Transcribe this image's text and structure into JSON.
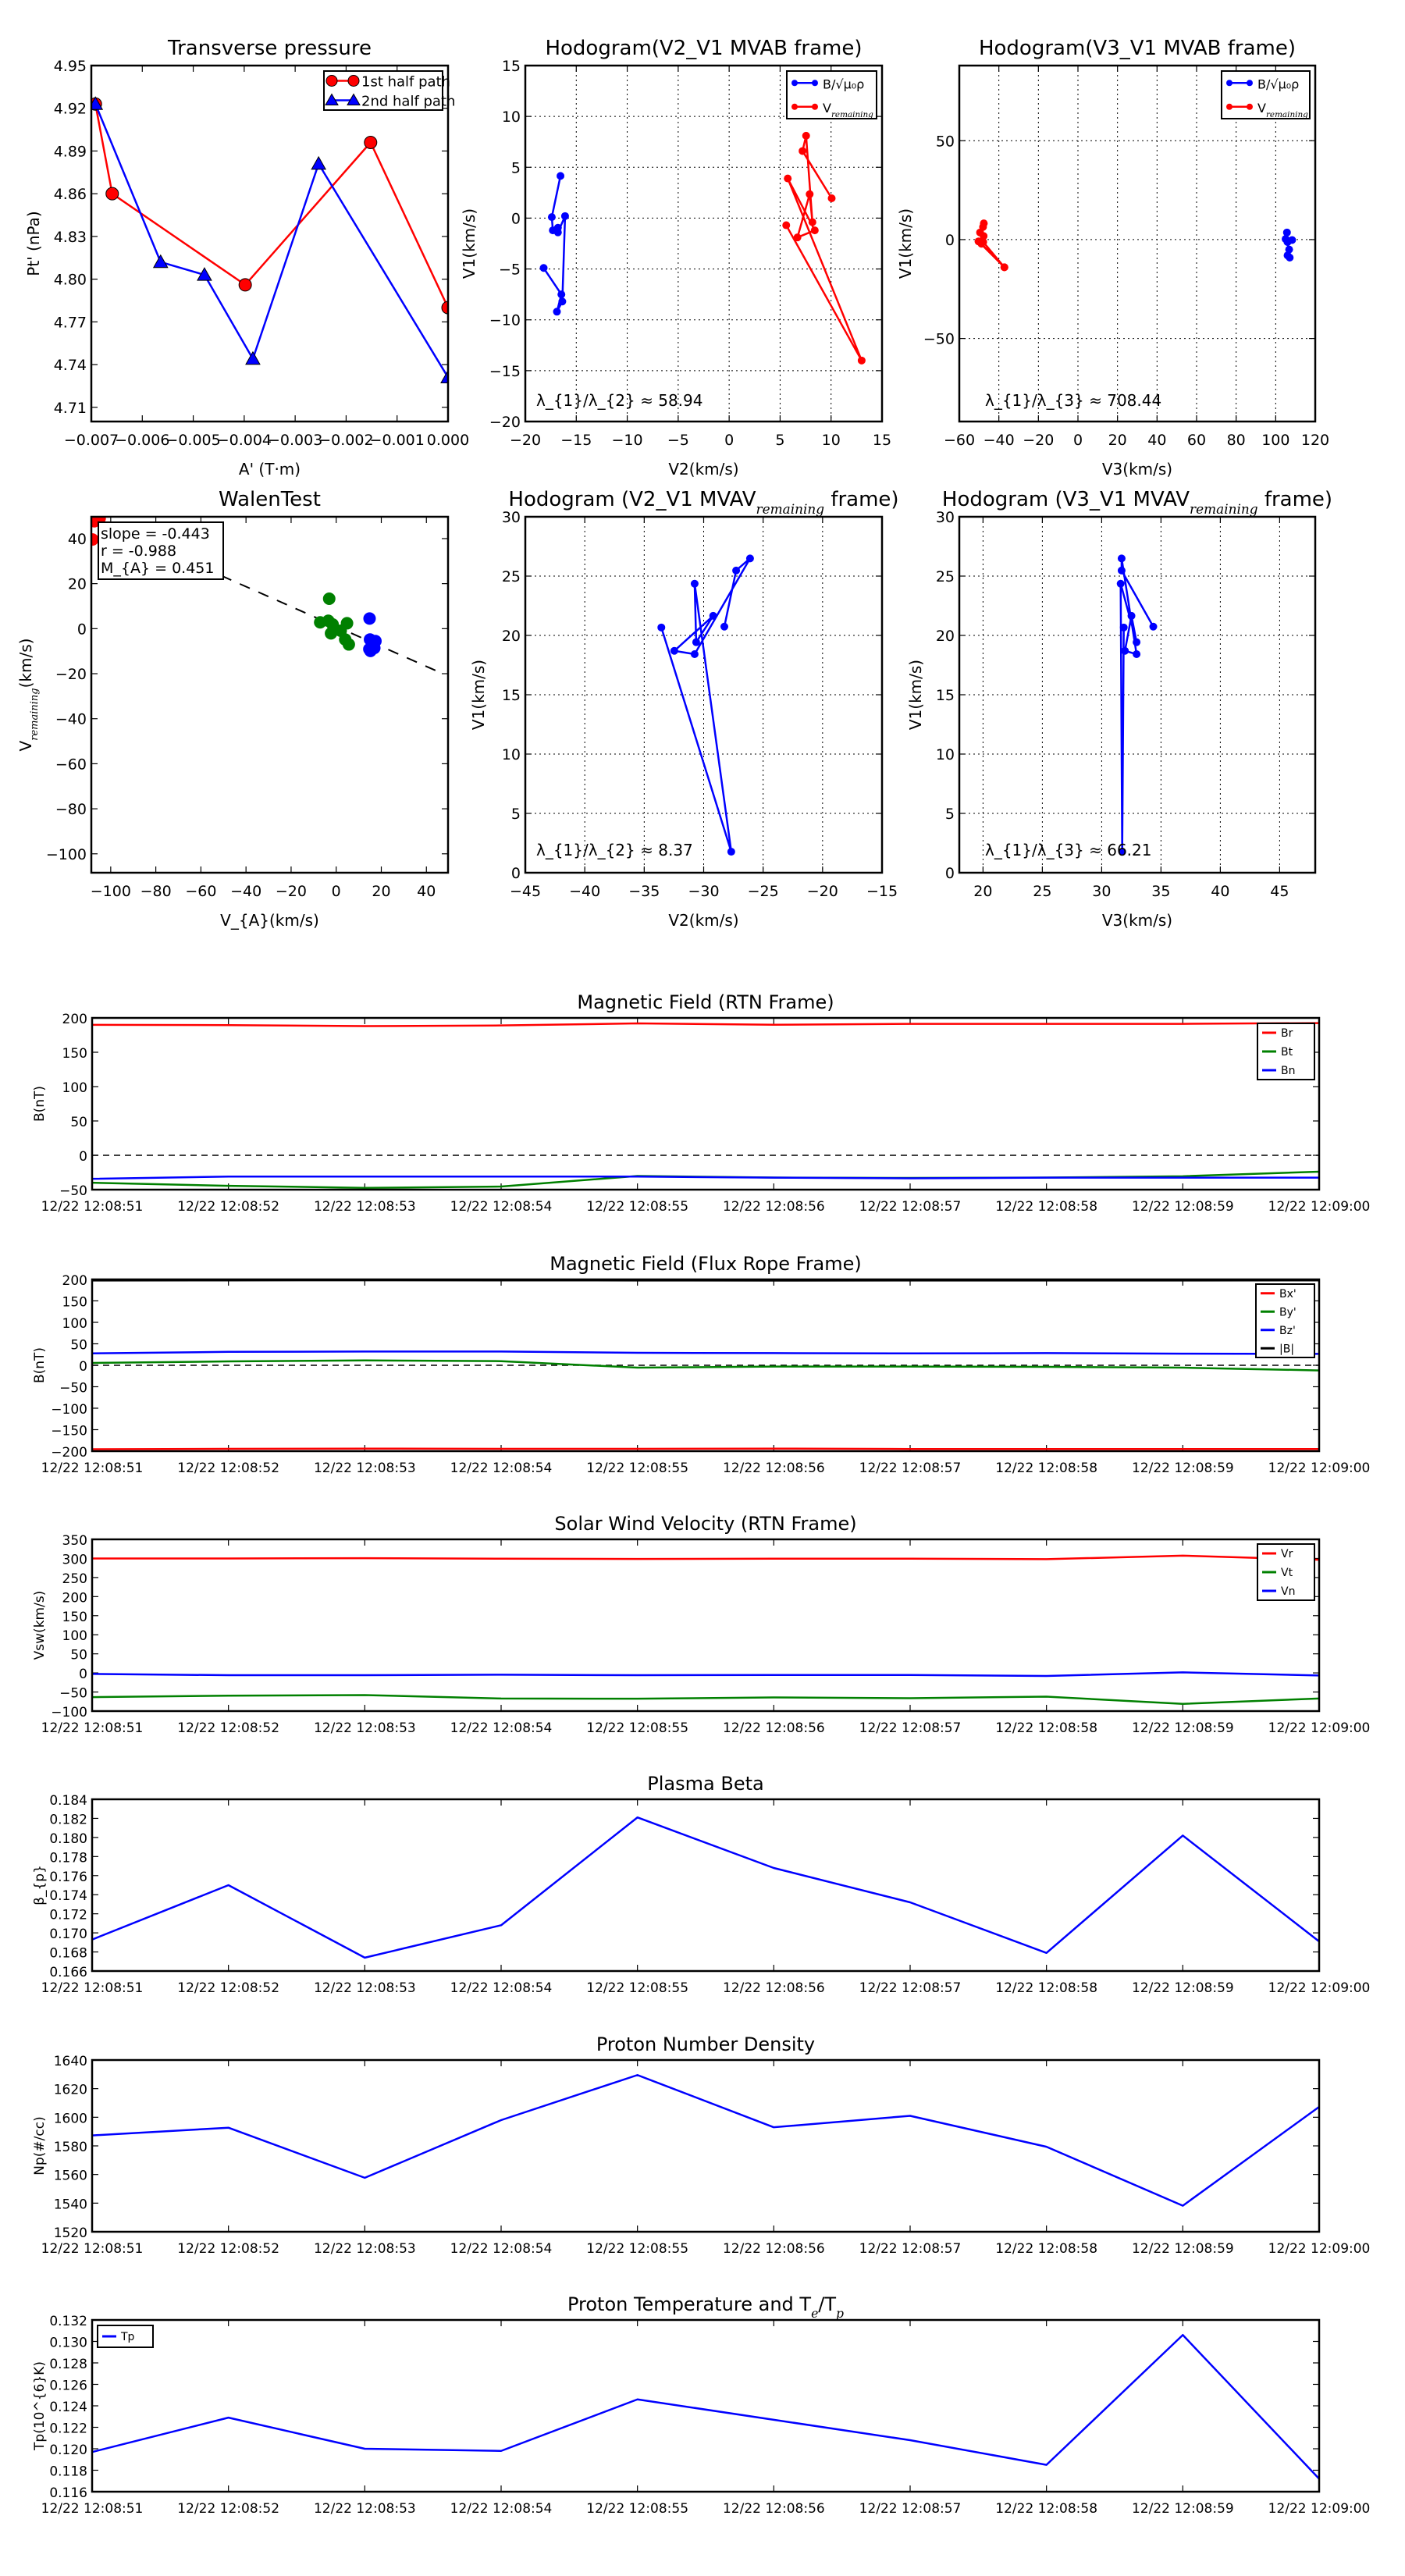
{
  "chart_data": [
    {
      "id": "pt",
      "type": "line",
      "title": "Transverse pressure",
      "xlabel": "A' (T·m)",
      "ylabel": "Pt' (nPa)",
      "xlim": [
        -0.007,
        0.0
      ],
      "ylim": [
        4.7,
        4.95
      ],
      "grid": false,
      "xticks": [
        -0.007,
        -0.006,
        -0.005,
        -0.004,
        -0.003,
        -0.002,
        -0.001,
        0.0
      ],
      "xticklabels": [
        "−0.007",
        "−0.006",
        "−0.005",
        "−0.004",
        "−0.003",
        "−0.002",
        "−0.001",
        "0.000"
      ],
      "yticks": [
        4.71,
        4.74,
        4.77,
        4.8,
        4.83,
        4.86,
        4.89,
        4.92,
        4.95
      ],
      "yticklabels": [
        "4.71",
        "4.74",
        "4.77",
        "4.80",
        "4.83",
        "4.86",
        "4.89",
        "4.92",
        "4.95"
      ],
      "legend": "top-right",
      "series": [
        {
          "name": "1st half path",
          "color": "#ff0000",
          "marker": "o",
          "x": [
            -0.00692,
            -0.00659,
            -0.00398,
            -0.00152,
            0.0
          ],
          "y": [
            4.923,
            4.86,
            4.796,
            4.896,
            4.78
          ]
        },
        {
          "name": "2nd half path",
          "color": "#0000ff",
          "marker": "^",
          "x": [
            -0.00692,
            -0.00564,
            -0.00478,
            -0.00383,
            -0.00254,
            0.0
          ],
          "y": [
            4.923,
            4.812,
            4.803,
            4.744,
            4.881,
            4.731
          ]
        }
      ]
    },
    {
      "id": "h1",
      "type": "line",
      "title": "Hodogram(V2_V1 MVAB frame)",
      "xlabel": "V2(km/s)",
      "ylabel": "V1(km/s)",
      "xlim": [
        -20,
        15
      ],
      "ylim": [
        -20,
        15
      ],
      "grid": true,
      "xticks": [
        -20,
        -15,
        -10,
        -5,
        0,
        5,
        10,
        15
      ],
      "xticklabels": [
        "−20",
        "−15",
        "−10",
        "−5",
        "0",
        "5",
        "10",
        "15"
      ],
      "yticks": [
        -20,
        -15,
        -10,
        -5,
        0,
        5,
        10,
        15
      ],
      "yticklabels": [
        "−20",
        "−15",
        "−10",
        "−5",
        "0",
        "5",
        "10",
        "15"
      ],
      "legend": "top-right",
      "annotation": "λ_{1}/λ_{2} ≈ 58.94",
      "series": [
        {
          "name": "B/√μ₀ρ",
          "color": "#0000ff",
          "marker": ".",
          "x": [
            -18.2,
            -16.46,
            -16.9,
            -16.37,
            -16.1,
            -16.8,
            -16.8,
            -17.3,
            -17.4,
            -16.55
          ],
          "y": [
            -4.9,
            -7.5,
            -9.2,
            -8.2,
            0.2,
            -1.4,
            -0.95,
            -1.2,
            0.1,
            4.15
          ]
        },
        {
          "name": "V_{remaining}",
          "color": "#ff0000",
          "marker": ".",
          "x": [
            5.6,
            13.0,
            5.75,
            8.4,
            6.7,
            7.9,
            8.17,
            7.55,
            7.2,
            10.06
          ],
          "y": [
            -0.7,
            -14.0,
            3.9,
            -1.2,
            -1.9,
            2.35,
            -0.4,
            8.1,
            6.6,
            1.95
          ]
        }
      ]
    },
    {
      "id": "h2",
      "type": "line",
      "title": "Hodogram(V3_V1 MVAB frame)",
      "xlabel": "V3(km/s)",
      "ylabel": "V1(km/s)",
      "xlim": [
        -60,
        120
      ],
      "ylim": [
        -92,
        88
      ],
      "grid": true,
      "xticks": [
        -60,
        -40,
        -20,
        0,
        20,
        40,
        60,
        80,
        100,
        120
      ],
      "xticklabels": [
        "−60",
        "−40",
        "−20",
        "0",
        "20",
        "40",
        "60",
        "80",
        "100",
        "120"
      ],
      "yticks": [
        -50,
        0,
        50
      ],
      "yticklabels": [
        "−50",
        "0",
        "50"
      ],
      "legend": "top-right",
      "annotation": "λ_{1}/λ_{3} ≈ 708.44",
      "series": [
        {
          "name": "B/√μ₀ρ",
          "color": "#0000ff",
          "marker": ".",
          "x": [
            106.0,
            106.8,
            107.1,
            106.0,
            108.3,
            105.0,
            105.7,
            106.0
          ],
          "y": [
            -8.0,
            -5.0,
            -9.1,
            -1.2,
            -0.2,
            0.3,
            3.6,
            -1.2
          ]
        },
        {
          "name": "V_{remaining}",
          "color": "#ff0000",
          "marker": ".",
          "x": [
            -47.6,
            -48.0,
            -49.5,
            -47.7,
            -50.3,
            -37.2,
            -48.8,
            -47.9,
            -37.2
          ],
          "y": [
            8.2,
            6.4,
            3.6,
            1.8,
            -0.9,
            -14.0,
            -2.1,
            -1.2,
            -14.0
          ]
        }
      ]
    },
    {
      "id": "walen",
      "type": "scatter",
      "title": "WalenTest",
      "xlabel": "V_{A}(km/s)",
      "ylabel": "V_{remaining}(km/s)",
      "xlim": [
        -108.6,
        49.6
      ],
      "ylim": [
        -108.4,
        49.7
      ],
      "grid": false,
      "xticks": [
        -100,
        -80,
        -60,
        -40,
        -20,
        0,
        20,
        40
      ],
      "xticklabels": [
        "−100",
        "−80",
        "−60",
        "−40",
        "−20",
        "0",
        "20",
        "40"
      ],
      "yticks": [
        -100,
        -80,
        -60,
        -40,
        -20,
        0,
        20,
        40
      ],
      "yticklabels": [
        "−100",
        "−80",
        "−60",
        "−40",
        "−20",
        "0",
        "20",
        "40"
      ],
      "fit": {
        "slope": -0.443,
        "intercept": 0.95,
        "x_range": [
          -108.6,
          47.3
        ]
      },
      "stats": [
        "slope = -0.443",
        "r = -0.988",
        "M_{A} = 0.451"
      ],
      "series": [
        {
          "name": "red",
          "color": "#ff0000",
          "x": [
            -107.3,
            -104.9,
            -108.1
          ],
          "y": [
            47.7,
            49.0,
            39.6
          ]
        },
        {
          "name": "green",
          "color": "#008000",
          "x": [
            -3.1,
            -7.1,
            -3.5,
            -1.6,
            -2.3,
            2.0,
            4.8,
            4.0,
            5.6
          ],
          "y": [
            13.3,
            2.8,
            3.5,
            1.9,
            -2.1,
            -0.9,
            2.4,
            -4.8,
            -7.0
          ]
        },
        {
          "name": "blue",
          "color": "#0000ff",
          "x": [
            14.8,
            15.0,
            17.4,
            14.7,
            16.9,
            15.2
          ],
          "y": [
            4.5,
            -4.8,
            -5.5,
            -9.1,
            -8.6,
            -9.9
          ]
        }
      ]
    },
    {
      "id": "h3",
      "type": "line",
      "title": "Hodogram (V2_V1 MVAV_{remaining} frame)",
      "xlabel": "V2(km/s)",
      "ylabel": "V1(km/s)",
      "xlim": [
        -45,
        -15
      ],
      "ylim": [
        0,
        30
      ],
      "grid": true,
      "xticks": [
        -45,
        -40,
        -35,
        -30,
        -25,
        -20,
        -15
      ],
      "xticklabels": [
        "−45",
        "−40",
        "−35",
        "−30",
        "−25",
        "−20",
        "−15"
      ],
      "yticks": [
        0,
        5,
        10,
        15,
        20,
        25,
        30
      ],
      "yticklabels": [
        "0",
        "5",
        "10",
        "15",
        "20",
        "25",
        "30"
      ],
      "annotation": "λ_{1}/λ_{2} ≈ 8.37",
      "series": [
        {
          "name": "V",
          "color": "#0000ff",
          "marker": ".",
          "x": [
            -33.56,
            -27.68,
            -30.76,
            -30.63,
            -29.2,
            -32.47,
            -30.76,
            -26.1,
            -27.27,
            -28.26
          ],
          "y": [
            20.67,
            1.77,
            24.36,
            19.43,
            21.65,
            18.7,
            18.42,
            26.49,
            25.47,
            20.74
          ]
        }
      ]
    },
    {
      "id": "h4",
      "type": "line",
      "title": "Hodogram (V3_V1 MVAV_{remaining} frame)",
      "xlabel": "V3(km/s)",
      "ylabel": "V1(km/s)",
      "xlim": [
        18,
        48
      ],
      "ylim": [
        0,
        30
      ],
      "grid": true,
      "xticks": [
        20,
        25,
        30,
        35,
        40,
        45
      ],
      "xticklabels": [
        "20",
        "25",
        "30",
        "35",
        "40",
        "45"
      ],
      "yticks": [
        0,
        5,
        10,
        15,
        20,
        25,
        30
      ],
      "yticklabels": [
        "0",
        "5",
        "10",
        "15",
        "20",
        "25",
        "30"
      ],
      "annotation": "λ_{1}/λ_{3} ≈ 66.21",
      "series": [
        {
          "name": "V",
          "color": "#0000ff",
          "marker": ".",
          "x": [
            31.86,
            31.73,
            31.6,
            32.94,
            32.51,
            31.96,
            32.94,
            31.68,
            31.68,
            34.35
          ],
          "y": [
            20.67,
            1.77,
            24.36,
            19.43,
            21.65,
            18.7,
            18.42,
            26.49,
            25.47,
            20.74
          ]
        }
      ]
    },
    {
      "id": "b_rtn",
      "type": "line",
      "title": "Magnetic Field (RTN Frame)",
      "ylabel": "B(nT)",
      "categories": [
        "12/22 12:08:51",
        "12/22 12:08:52",
        "12/22 12:08:53",
        "12/22 12:08:54",
        "12/22 12:08:55",
        "12/22 12:08:56",
        "12/22 12:08:57",
        "12/22 12:08:58",
        "12/22 12:08:59",
        "12/22 12:09:00"
      ],
      "ylim": [
        -50,
        200
      ],
      "yticks": [
        -50,
        0,
        50,
        100,
        150,
        200
      ],
      "yticklabels": [
        "−50",
        "0",
        "50",
        "100",
        "150",
        "200"
      ],
      "zero_line": true,
      "legend": "top-right",
      "series": [
        {
          "name": "Br",
          "color": "#ff0000",
          "values": [
            189.9,
            189.5,
            188.0,
            189.0,
            192.0,
            190.0,
            191.4,
            191.4,
            191.4,
            192.5
          ]
        },
        {
          "name": "Bt",
          "color": "#008000",
          "values": [
            -39.9,
            -44.4,
            -47.4,
            -45.5,
            -30.1,
            -32.4,
            -33.0,
            -32.4,
            -30.5,
            -23.8
          ]
        },
        {
          "name": "Bn",
          "color": "#0000ff",
          "values": [
            -34.3,
            -31.0,
            -31.0,
            -31.0,
            -31.0,
            -32.5,
            -33.5,
            -32.5,
            -32.5,
            -32.5
          ]
        }
      ]
    },
    {
      "id": "b_fr",
      "type": "line",
      "title": "Magnetic Field (Flux Rope Frame)",
      "ylabel": "B(nT)",
      "categories": [
        "12/22 12:08:51",
        "12/22 12:08:52",
        "12/22 12:08:53",
        "12/22 12:08:54",
        "12/22 12:08:55",
        "12/22 12:08:56",
        "12/22 12:08:57",
        "12/22 12:08:58",
        "12/22 12:08:59",
        "12/22 12:09:00"
      ],
      "ylim": [
        -200,
        200
      ],
      "yticks": [
        -200,
        -150,
        -100,
        -50,
        0,
        50,
        100,
        150,
        200
      ],
      "yticklabels": [
        "−200",
        "−150",
        "−100",
        "−50",
        "0",
        "50",
        "100",
        "150",
        "200"
      ],
      "zero_line": true,
      "legend": "top-right",
      "series": [
        {
          "name": "Bx'",
          "color": "#ff0000",
          "values": [
            -195.5,
            -194.5,
            -194.0,
            -194.5,
            -194.5,
            -194.0,
            -195.0,
            -195.0,
            -195.0,
            -195.0
          ]
        },
        {
          "name": "By'",
          "color": "#008000",
          "values": [
            5.4,
            9.0,
            11.4,
            9.6,
            -5.5,
            -3.0,
            -3.0,
            -3.6,
            -5.5,
            -12.0
          ]
        },
        {
          "name": "Bz'",
          "color": "#0000ff",
          "values": [
            27.7,
            31.3,
            32.0,
            32.0,
            29.0,
            28.3,
            27.7,
            28.3,
            27.0,
            26.5
          ]
        },
        {
          "name": "|B|",
          "color": "#000000",
          "values": [
            197.6,
            197.8,
            197.9,
            197.8,
            197.6,
            197.3,
            197.6,
            197.6,
            197.6,
            197.8
          ]
        }
      ]
    },
    {
      "id": "vsw",
      "type": "line",
      "title": "Solar Wind Velocity (RTN Frame)",
      "ylabel": "Vsw(km/s)",
      "categories": [
        "12/22 12:08:51",
        "12/22 12:08:52",
        "12/22 12:08:53",
        "12/22 12:08:54",
        "12/22 12:08:55",
        "12/22 12:08:56",
        "12/22 12:08:57",
        "12/22 12:08:58",
        "12/22 12:08:59",
        "12/22 12:09:00"
      ],
      "ylim": [
        -100,
        350
      ],
      "yticks": [
        -100,
        -50,
        0,
        50,
        100,
        150,
        200,
        250,
        300,
        350
      ],
      "yticklabels": [
        "−100",
        "−50",
        "0",
        "50",
        "100",
        "150",
        "200",
        "250",
        "300",
        "350"
      ],
      "legend": "top-right",
      "series": [
        {
          "name": "Vr",
          "color": "#ff0000",
          "values": [
            300.0,
            300.0,
            300.7,
            299.3,
            298.6,
            299.3,
            299.3,
            298.0,
            307.4,
            296.6
          ]
        },
        {
          "name": "Vt",
          "color": "#008000",
          "values": [
            -63.5,
            -59.5,
            -58.0,
            -67.0,
            -67.6,
            -64.3,
            -66.2,
            -62.2,
            -81.0,
            -67.0
          ]
        },
        {
          "name": "Vn",
          "color": "#0000ff",
          "values": [
            -2.7,
            -6.0,
            -6.0,
            -4.7,
            -6.0,
            -5.4,
            -5.4,
            -8.0,
            1.4,
            -6.7
          ]
        }
      ]
    },
    {
      "id": "beta",
      "type": "line",
      "title": "Plasma Beta",
      "ylabel": "β_{p}",
      "categories": [
        "12/22 12:08:51",
        "12/22 12:08:52",
        "12/22 12:08:53",
        "12/22 12:08:54",
        "12/22 12:08:55",
        "12/22 12:08:56",
        "12/22 12:08:57",
        "12/22 12:08:58",
        "12/22 12:08:59",
        "12/22 12:09:00"
      ],
      "ylim": [
        0.166,
        0.184
      ],
      "yticks": [
        0.166,
        0.168,
        0.17,
        0.172,
        0.174,
        0.176,
        0.178,
        0.18,
        0.182,
        0.184
      ],
      "yticklabels": [
        "0.166",
        "0.168",
        "0.170",
        "0.172",
        "0.174",
        "0.176",
        "0.178",
        "0.180",
        "0.182",
        "0.184"
      ],
      "series": [
        {
          "name": "beta",
          "color": "#0000ff",
          "values": [
            0.1693,
            0.175,
            0.1674,
            0.1708,
            0.1821,
            0.1768,
            0.1732,
            0.1679,
            0.1802,
            0.1691
          ]
        }
      ]
    },
    {
      "id": "np",
      "type": "line",
      "title": "Proton Number Density",
      "ylabel": "Np(#/cc)",
      "categories": [
        "12/22 12:08:51",
        "12/22 12:08:52",
        "12/22 12:08:53",
        "12/22 12:08:54",
        "12/22 12:08:55",
        "12/22 12:08:56",
        "12/22 12:08:57",
        "12/22 12:08:58",
        "12/22 12:08:59",
        "12/22 12:09:00"
      ],
      "ylim": [
        1520,
        1640
      ],
      "yticks": [
        1520,
        1540,
        1560,
        1580,
        1600,
        1620,
        1640
      ],
      "yticklabels": [
        "1520",
        "1540",
        "1560",
        "1580",
        "1600",
        "1620",
        "1640"
      ],
      "series": [
        {
          "name": "Np",
          "color": "#0000ff",
          "values": [
            1587.3,
            1592.7,
            1557.7,
            1598.0,
            1629.5,
            1593.0,
            1601.0,
            1579.4,
            1538.2,
            1607.3
          ]
        }
      ]
    },
    {
      "id": "tp",
      "type": "line",
      "title": "Proton Temperature and T_{e}/T_{p}",
      "ylabel": "Tp(10^{6}K)",
      "categories": [
        "12/22 12:08:51",
        "12/22 12:08:52",
        "12/22 12:08:53",
        "12/22 12:08:54",
        "12/22 12:08:55",
        "12/22 12:08:56",
        "12/22 12:08:57",
        "12/22 12:08:58",
        "12/22 12:08:59",
        "12/22 12:09:00"
      ],
      "ylim": [
        0.116,
        0.132
      ],
      "yticks": [
        0.116,
        0.118,
        0.12,
        0.122,
        0.124,
        0.126,
        0.128,
        0.13,
        0.132
      ],
      "yticklabels": [
        "0.116",
        "0.118",
        "0.120",
        "0.122",
        "0.124",
        "0.126",
        "0.128",
        "0.130",
        "0.132"
      ],
      "legend": "top-left",
      "series": [
        {
          "name": "Tp",
          "color": "#0000ff",
          "values": [
            0.1197,
            0.1229,
            0.12,
            0.1198,
            0.1246,
            0.1227,
            0.1208,
            0.1185,
            0.1306,
            0.1172
          ]
        }
      ]
    }
  ]
}
